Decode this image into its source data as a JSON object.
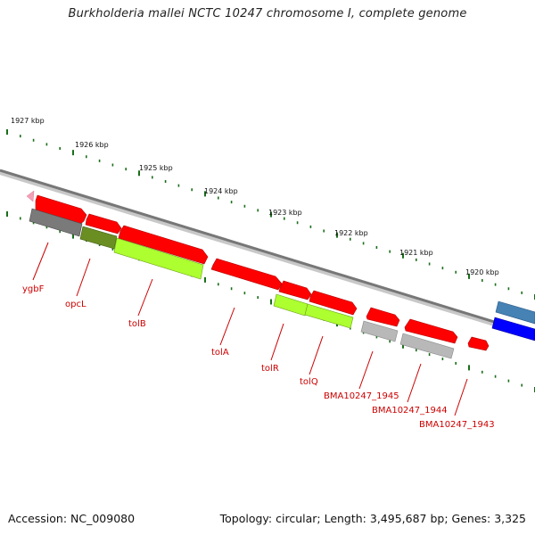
{
  "title": "Burkholderia mallei NCTC 10247 chromosome I, complete genome",
  "footer": {
    "accession": "Accession: NC_009080",
    "topology": "Topology: circular; Length: 3,495,687 bp; Genes: 3,325"
  },
  "scale_labels": [
    "1927 kbp",
    "1926 kbp",
    "1925 kbp",
    "1924 kbp",
    "1923 kbp",
    "1922 kbp",
    "1921 kbp",
    "1920 kbp"
  ],
  "gene_labels": [
    "ygbF",
    "opcL",
    "tolB",
    "tolA",
    "tolR",
    "tolQ",
    "BMA10247_1945",
    "BMA10247_1944",
    "BMA10247_1943"
  ],
  "colors": {
    "cds": "#ff0000",
    "gene_gray": "#8a8a8a",
    "gene_light": "#b8b8b8",
    "olive": "#6b8e23",
    "lime": "#adff2f",
    "pink": "#f4a0b8",
    "steel": "#4682b4",
    "blue": "#0000ff",
    "backbone": "#888888",
    "tick": "#1a6e1a",
    "label": "#cc0000"
  }
}
